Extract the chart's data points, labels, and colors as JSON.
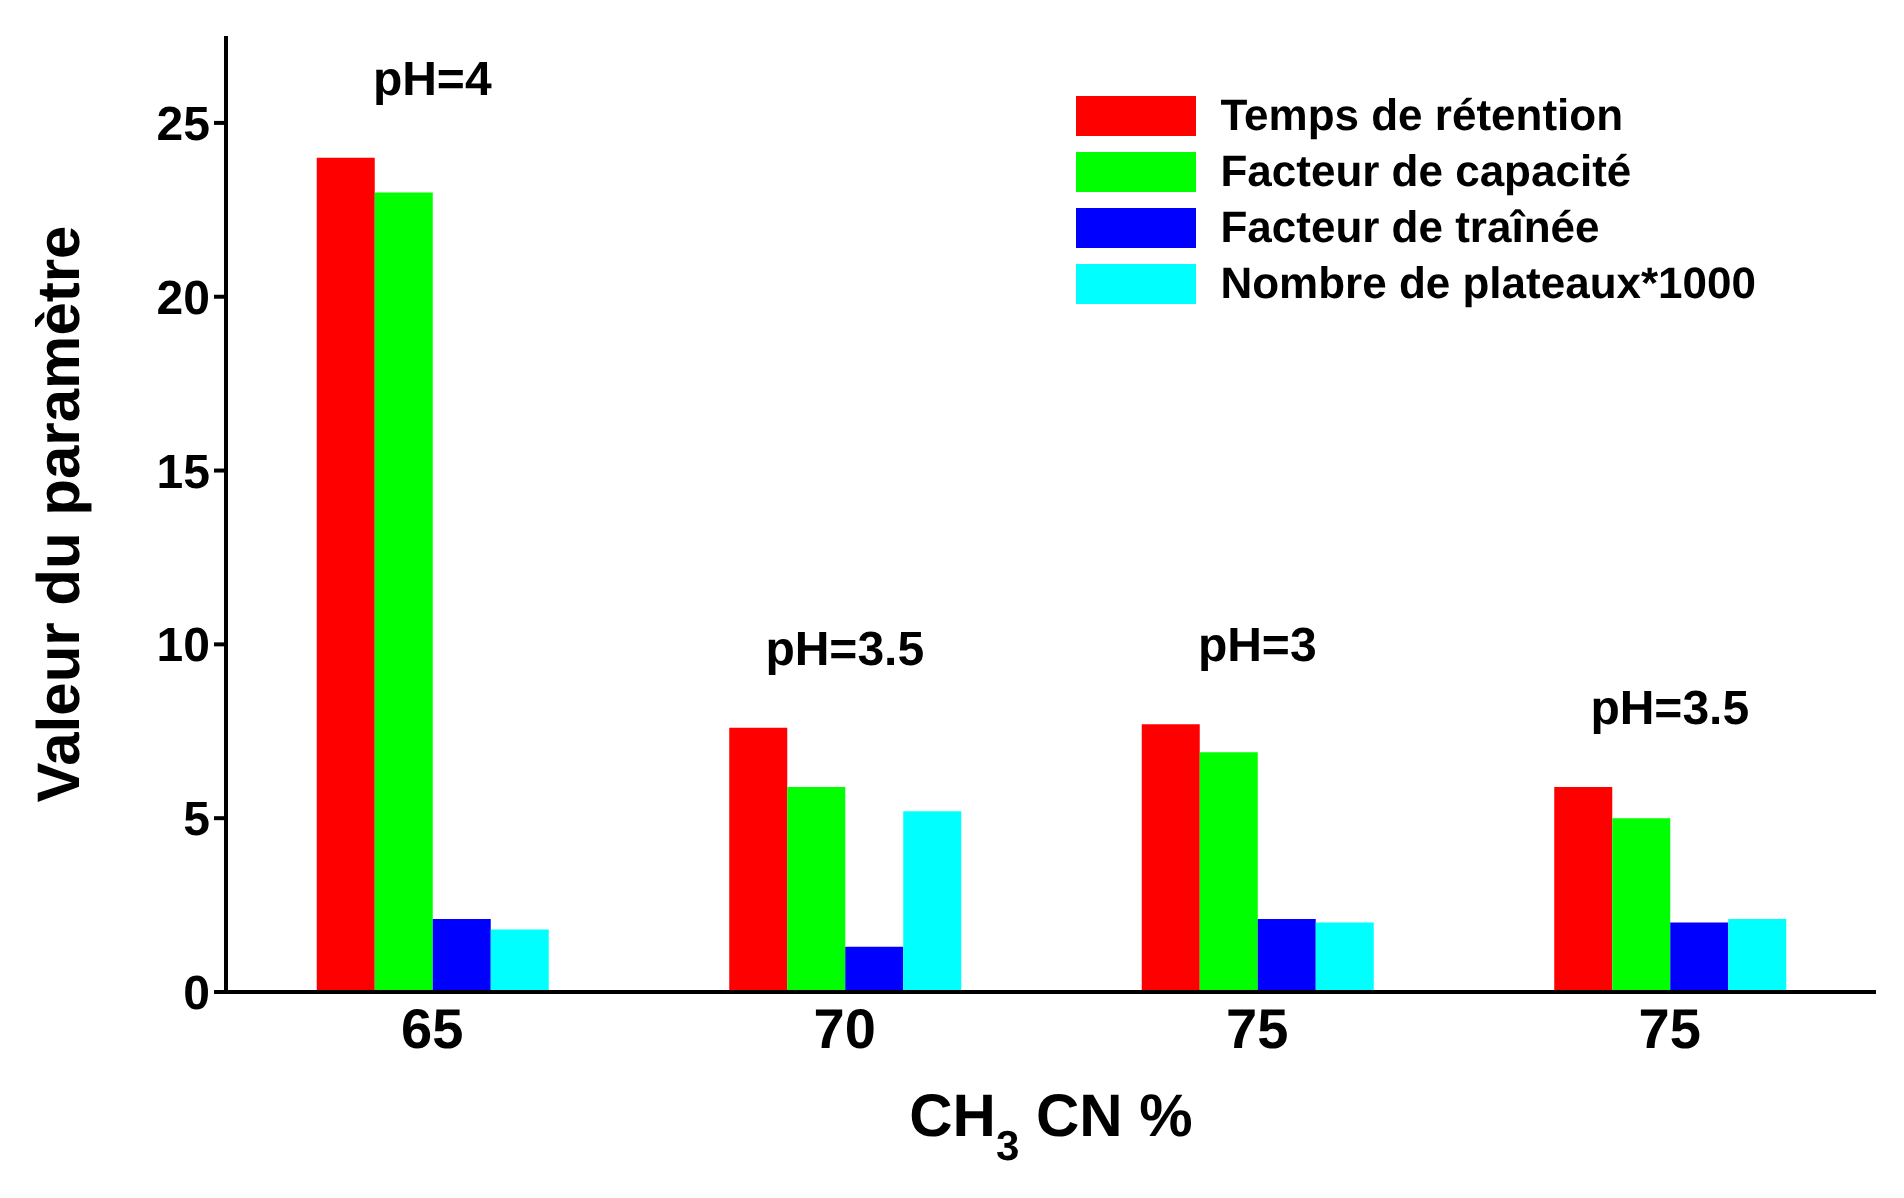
{
  "chart_data": {
    "type": "bar",
    "xlabel": "CH$_{3}$CN %",
    "ylabel": "Valeur du paramètre",
    "categories": [
      "65",
      "70",
      "75",
      "75"
    ],
    "series": [
      {
        "name": "Temps de rétention",
        "color": "#ff0000",
        "values": [
          24,
          7.6,
          7.7,
          5.9
        ]
      },
      {
        "name": "Facteur de capacité",
        "color": "#00ff00",
        "values": [
          23,
          5.9,
          6.9,
          5.0
        ]
      },
      {
        "name": "Facteur de traînée",
        "color": "#0000ff",
        "values": [
          2.1,
          1.3,
          2.1,
          2.0
        ]
      },
      {
        "name": "Nombre de plateaux*1000",
        "color": "#00ffff",
        "values": [
          1.8,
          5.2,
          2.0,
          2.1
        ]
      }
    ],
    "annotations": [
      "pH=4",
      "pH=3.5",
      "pH=3",
      "pH=3.5"
    ],
    "ylim": [
      0,
      27.5
    ],
    "yticks": [
      0,
      5,
      10,
      15,
      20,
      25
    ],
    "legend": "top right"
  }
}
